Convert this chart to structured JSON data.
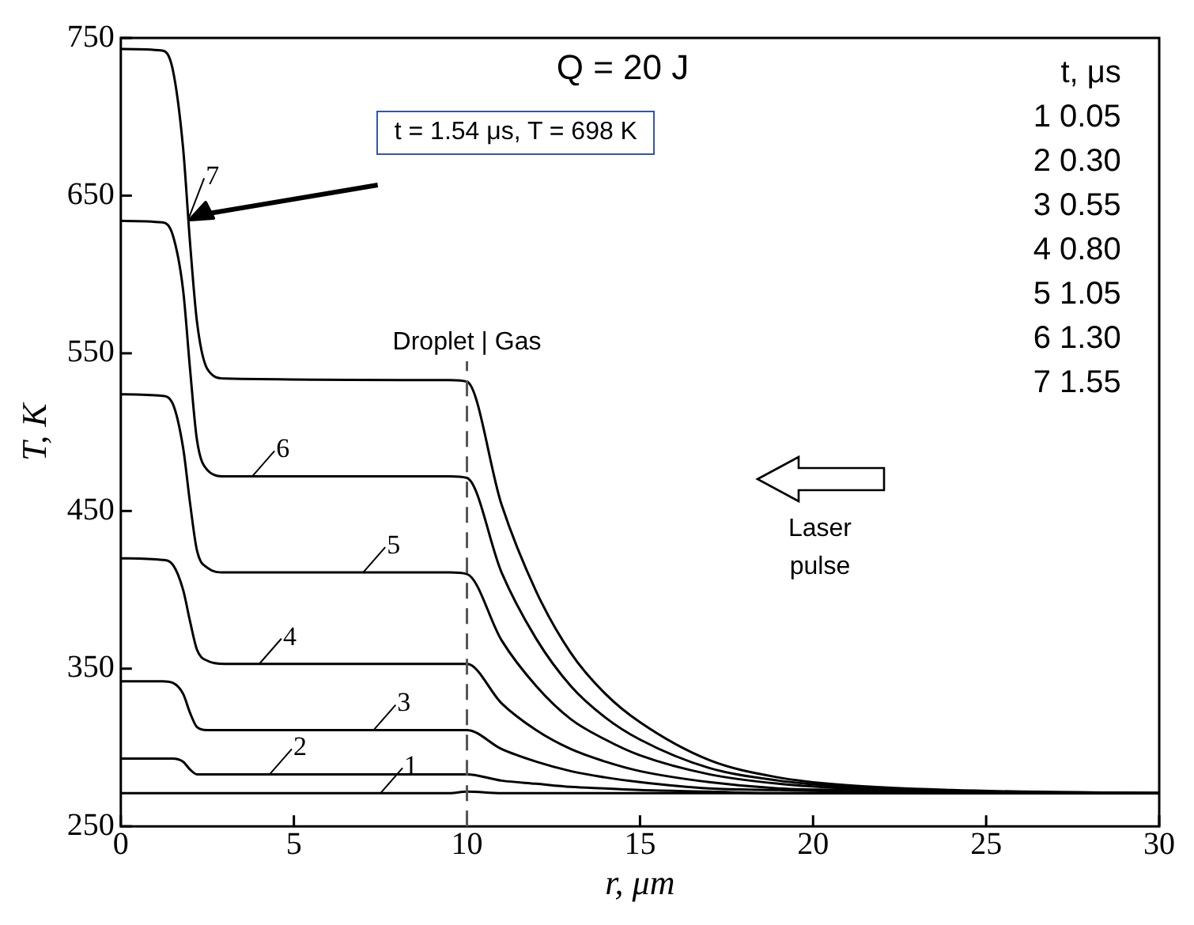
{
  "chart_data": {
    "type": "line",
    "title": "Q = 20 J",
    "xlabel": "r, μm",
    "ylabel": "T, K",
    "legend_title": "t, μs",
    "legend": "bottom left",
    "xlim": [
      0,
      30
    ],
    "xticks": [
      0,
      5,
      10,
      15,
      20,
      25,
      30
    ],
    "ylim": [
      250,
      750
    ],
    "yticks": [
      250,
      350,
      450,
      550,
      650,
      750
    ],
    "marker": "none",
    "line_style": "solid",
    "ref_lines": [
      {
        "axis": "x",
        "value": 10,
        "label": "Droplet | Gas",
        "line_style": "dashed",
        "color": "#555555"
      }
    ],
    "annotations": [
      "t = 1.54 μs, T = 698 K",
      "Laser pulse",
      "1 0.05",
      "2 0.30",
      "3 0.55",
      "4 0.80",
      "5 1.05",
      "6 1.30",
      "7 1.55"
    ],
    "x": [
      0,
      1.2,
      1.5,
      1.8,
      2.0,
      2.2,
      2.5,
      3,
      9.5,
      10,
      11,
      12,
      13,
      14,
      15,
      17,
      19,
      21,
      24,
      30
    ],
    "series": [
      {
        "name": "1",
        "color": "#000000",
        "values": [
          271,
          271,
          271,
          271,
          271,
          271,
          271,
          271,
          271,
          272,
          271,
          271,
          271,
          271,
          271,
          271,
          271,
          271,
          271,
          271
        ]
      },
      {
        "name": "2",
        "color": "#000000",
        "values": [
          293,
          293,
          293,
          291,
          286,
          283,
          283,
          283,
          283,
          283,
          279,
          277,
          275,
          274,
          273,
          272,
          271,
          271,
          271,
          271
        ]
      },
      {
        "name": "3",
        "color": "#000000",
        "values": [
          342,
          342,
          341,
          334,
          322,
          313,
          311,
          311,
          311,
          311,
          299,
          291,
          285,
          281,
          278,
          274,
          273,
          272,
          271,
          271
        ]
      },
      {
        "name": "4",
        "color": "#000000",
        "values": [
          420,
          419,
          416,
          400,
          380,
          362,
          355,
          353,
          353,
          353,
          328,
          311,
          299,
          291,
          285,
          278,
          274,
          273,
          272,
          271
        ]
      },
      {
        "name": "5",
        "color": "#000000",
        "values": [
          524,
          523,
          518,
          490,
          455,
          425,
          414,
          411,
          411,
          410,
          368,
          339,
          318,
          305,
          295,
          283,
          277,
          274,
          272,
          271
        ]
      },
      {
        "name": "6",
        "color": "#000000",
        "values": [
          634,
          633,
          625,
          590,
          540,
          495,
          476,
          472,
          472,
          471,
          411,
          369,
          339,
          319,
          305,
          287,
          279,
          275,
          272,
          271
        ]
      },
      {
        "name": "7",
        "color": "#000000",
        "values": [
          743,
          742,
          730,
          680,
          620,
          570,
          540,
          534,
          533,
          532,
          454,
          399,
          360,
          334,
          316,
          292,
          281,
          276,
          273,
          271
        ]
      }
    ]
  }
}
